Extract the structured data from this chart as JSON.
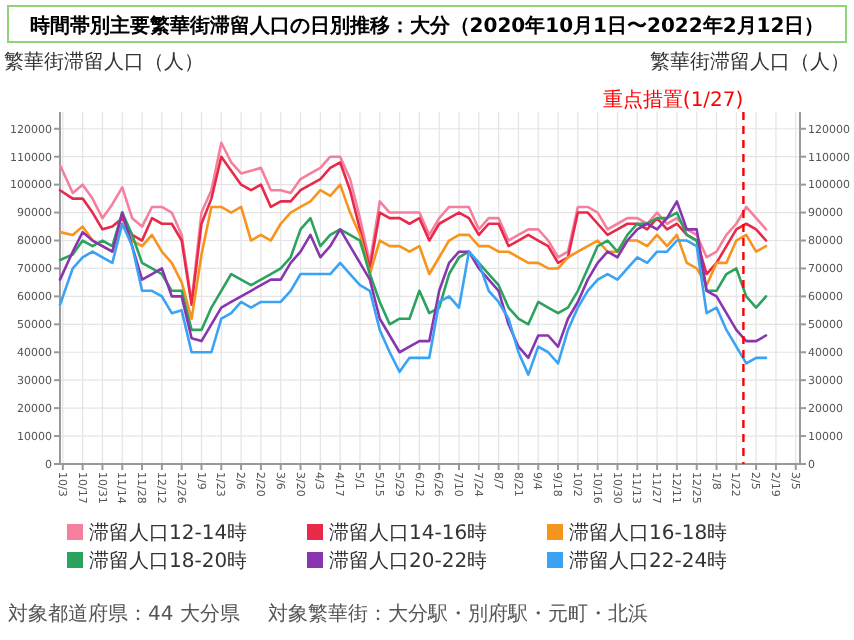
{
  "chart_data": {
    "type": "line",
    "title": "時間帯別主要繁華街滞留人口の日別推移：大分（2020年10月1日〜2022年2月12日）",
    "ylabel": "繁華街滞留人口（人）",
    "y2label": "繁華街滞留人口（人）",
    "x": [
      "2020-10-01",
      "2020-10-10",
      "2020-10-17",
      "2020-10-24",
      "2020-10-31",
      "2020-11-07",
      "2020-11-14",
      "2020-11-21",
      "2020-11-28",
      "2020-12-05",
      "2020-12-12",
      "2020-12-19",
      "2020-12-26",
      "2021-01-02",
      "2021-01-09",
      "2021-01-16",
      "2021-01-23",
      "2021-01-30",
      "2021-02-06",
      "2021-02-13",
      "2021-02-20",
      "2021-02-27",
      "2021-03-06",
      "2021-03-13",
      "2021-03-20",
      "2021-03-27",
      "2021-04-03",
      "2021-04-10",
      "2021-04-17",
      "2021-04-24",
      "2021-05-01",
      "2021-05-08",
      "2021-05-15",
      "2021-05-22",
      "2021-05-29",
      "2021-06-05",
      "2021-06-12",
      "2021-06-19",
      "2021-06-26",
      "2021-07-03",
      "2021-07-10",
      "2021-07-17",
      "2021-07-24",
      "2021-07-31",
      "2021-08-07",
      "2021-08-14",
      "2021-08-21",
      "2021-08-28",
      "2021-09-04",
      "2021-09-11",
      "2021-09-18",
      "2021-09-25",
      "2021-10-02",
      "2021-10-09",
      "2021-10-16",
      "2021-10-23",
      "2021-10-30",
      "2021-11-06",
      "2021-11-13",
      "2021-11-20",
      "2021-11-27",
      "2021-12-04",
      "2021-12-11",
      "2021-12-18",
      "2021-12-25",
      "2022-01-01",
      "2022-01-08",
      "2022-01-15",
      "2022-01-22",
      "2022-01-29",
      "2022-02-05",
      "2022-02-12"
    ],
    "series": [
      {
        "name": "滞留人口12-14時",
        "color": "#f5809e",
        "values": [
          107000,
          97000,
          100000,
          95000,
          88000,
          93000,
          99000,
          88000,
          85000,
          92000,
          92000,
          90000,
          82000,
          58000,
          90000,
          98000,
          115000,
          108000,
          104000,
          105000,
          106000,
          98000,
          98000,
          97000,
          102000,
          104000,
          106000,
          110000,
          110000,
          102000,
          88000,
          72000,
          94000,
          90000,
          90000,
          90000,
          90000,
          82000,
          88000,
          92000,
          92000,
          92000,
          84000,
          88000,
          88000,
          80000,
          82000,
          84000,
          84000,
          80000,
          74000,
          76000,
          92000,
          92000,
          90000,
          84000,
          86000,
          88000,
          88000,
          86000,
          90000,
          86000,
          88000,
          84000,
          82000,
          74000,
          76000,
          82000,
          86000,
          92000,
          88000,
          84000
        ]
      },
      {
        "name": "滞留人口14-16時",
        "color": "#e8294a",
        "values": [
          98000,
          95000,
          95000,
          90000,
          84000,
          85000,
          88000,
          82000,
          80000,
          88000,
          86000,
          86000,
          80000,
          57000,
          86000,
          95000,
          110000,
          105000,
          100000,
          98000,
          100000,
          92000,
          94000,
          94000,
          98000,
          100000,
          102000,
          106000,
          108000,
          98000,
          84000,
          70000,
          90000,
          88000,
          88000,
          86000,
          88000,
          80000,
          86000,
          88000,
          90000,
          88000,
          82000,
          86000,
          86000,
          78000,
          80000,
          82000,
          80000,
          78000,
          72000,
          74000,
          90000,
          90000,
          86000,
          82000,
          84000,
          86000,
          86000,
          84000,
          88000,
          84000,
          86000,
          82000,
          80000,
          68000,
          72000,
          78000,
          84000,
          86000,
          84000,
          80000
        ]
      },
      {
        "name": "滞留人口16-18時",
        "color": "#f7941d",
        "values": [
          83000,
          82000,
          85000,
          80000,
          78000,
          76000,
          86000,
          80000,
          78000,
          82000,
          76000,
          72000,
          65000,
          52000,
          75000,
          92000,
          92000,
          90000,
          92000,
          80000,
          82000,
          80000,
          86000,
          90000,
          92000,
          94000,
          98000,
          96000,
          100000,
          90000,
          82000,
          68000,
          80000,
          78000,
          78000,
          76000,
          78000,
          68000,
          74000,
          80000,
          82000,
          82000,
          78000,
          78000,
          76000,
          76000,
          74000,
          72000,
          72000,
          70000,
          70000,
          74000,
          76000,
          78000,
          80000,
          76000,
          76000,
          80000,
          80000,
          78000,
          82000,
          78000,
          82000,
          72000,
          70000,
          64000,
          72000,
          72000,
          80000,
          82000,
          76000,
          78000
        ]
      },
      {
        "name": "滞留人口18-20時",
        "color": "#2ca25f",
        "values": [
          73000,
          75000,
          80000,
          78000,
          80000,
          78000,
          90000,
          82000,
          72000,
          70000,
          68000,
          62000,
          62000,
          48000,
          48000,
          56000,
          62000,
          68000,
          66000,
          64000,
          66000,
          68000,
          70000,
          74000,
          84000,
          88000,
          78000,
          82000,
          84000,
          82000,
          80000,
          68000,
          58000,
          50000,
          52000,
          52000,
          62000,
          54000,
          56000,
          68000,
          74000,
          76000,
          72000,
          68000,
          64000,
          56000,
          52000,
          50000,
          58000,
          56000,
          54000,
          56000,
          62000,
          70000,
          78000,
          80000,
          76000,
          82000,
          86000,
          86000,
          88000,
          88000,
          90000,
          82000,
          80000,
          62000,
          62000,
          68000,
          70000,
          60000,
          56000,
          60000
        ]
      },
      {
        "name": "滞留人口20-22時",
        "color": "#8a35b0",
        "values": [
          66000,
          76000,
          83000,
          80000,
          78000,
          76000,
          90000,
          78000,
          66000,
          68000,
          70000,
          60000,
          60000,
          45000,
          44000,
          50000,
          56000,
          58000,
          60000,
          62000,
          64000,
          66000,
          66000,
          72000,
          76000,
          82000,
          74000,
          78000,
          84000,
          78000,
          72000,
          66000,
          52000,
          46000,
          40000,
          42000,
          44000,
          44000,
          62000,
          72000,
          76000,
          76000,
          70000,
          66000,
          62000,
          50000,
          42000,
          38000,
          46000,
          46000,
          42000,
          52000,
          58000,
          66000,
          72000,
          76000,
          74000,
          80000,
          84000,
          86000,
          84000,
          88000,
          94000,
          84000,
          84000,
          62000,
          60000,
          54000,
          48000,
          44000,
          44000,
          46000
        ]
      },
      {
        "name": "滞留人口22-24時",
        "color": "#3aa3f5",
        "values": [
          57000,
          70000,
          74000,
          76000,
          74000,
          72000,
          86000,
          78000,
          62000,
          62000,
          60000,
          54000,
          55000,
          40000,
          40000,
          40000,
          52000,
          54000,
          58000,
          56000,
          58000,
          58000,
          58000,
          62000,
          68000,
          68000,
          68000,
          68000,
          72000,
          68000,
          64000,
          62000,
          48000,
          40000,
          33000,
          38000,
          38000,
          38000,
          58000,
          60000,
          56000,
          76000,
          72000,
          62000,
          58000,
          52000,
          40000,
          32000,
          42000,
          40000,
          36000,
          48000,
          56000,
          62000,
          66000,
          68000,
          66000,
          70000,
          74000,
          72000,
          76000,
          76000,
          80000,
          80000,
          78000,
          54000,
          56000,
          48000,
          42000,
          36000,
          38000,
          38000
        ]
      }
    ],
    "xlim": [
      "2020-10-01",
      "2022-03-08"
    ],
    "xticks": [
      {
        "value": "2020-10-03",
        "label": "10/3"
      },
      {
        "value": "2020-10-17",
        "label": "10/17"
      },
      {
        "value": "2020-10-31",
        "label": "10/31"
      },
      {
        "value": "2020-11-14",
        "label": "11/14"
      },
      {
        "value": "2020-11-28",
        "label": "11/28"
      },
      {
        "value": "2020-12-12",
        "label": "12/12"
      },
      {
        "value": "2020-12-26",
        "label": "12/26"
      },
      {
        "value": "2021-01-09",
        "label": "1/9"
      },
      {
        "value": "2021-01-23",
        "label": "1/23"
      },
      {
        "value": "2021-02-06",
        "label": "2/6"
      },
      {
        "value": "2021-02-20",
        "label": "2/20"
      },
      {
        "value": "2021-03-06",
        "label": "3/6"
      },
      {
        "value": "2021-03-20",
        "label": "3/20"
      },
      {
        "value": "2021-04-03",
        "label": "4/3"
      },
      {
        "value": "2021-04-17",
        "label": "4/17"
      },
      {
        "value": "2021-05-01",
        "label": "5/1"
      },
      {
        "value": "2021-05-15",
        "label": "5/15"
      },
      {
        "value": "2021-05-29",
        "label": "5/29"
      },
      {
        "value": "2021-06-12",
        "label": "6/12"
      },
      {
        "value": "2021-06-26",
        "label": "6/26"
      },
      {
        "value": "2021-07-10",
        "label": "7/10"
      },
      {
        "value": "2021-07-24",
        "label": "7/24"
      },
      {
        "value": "2021-08-07",
        "label": "8/7"
      },
      {
        "value": "2021-08-21",
        "label": "8/21"
      },
      {
        "value": "2021-09-04",
        "label": "9/4"
      },
      {
        "value": "2021-09-18",
        "label": "9/18"
      },
      {
        "value": "2021-10-02",
        "label": "10/2"
      },
      {
        "value": "2021-10-16",
        "label": "10/16"
      },
      {
        "value": "2021-10-30",
        "label": "10/30"
      },
      {
        "value": "2021-11-13",
        "label": "11/13"
      },
      {
        "value": "2021-11-27",
        "label": "11/27"
      },
      {
        "value": "2021-12-11",
        "label": "12/11"
      },
      {
        "value": "2021-12-25",
        "label": "12/25"
      },
      {
        "value": "2022-01-08",
        "label": "1/8"
      },
      {
        "value": "2022-01-22",
        "label": "1/22"
      },
      {
        "value": "2022-02-05",
        "label": "2/5"
      },
      {
        "value": "2022-02-19",
        "label": "2/19"
      },
      {
        "value": "2022-03-05",
        "label": "3/5"
      }
    ],
    "ylim": [
      0,
      126000
    ],
    "yticks": [
      0,
      10000,
      20000,
      30000,
      40000,
      50000,
      60000,
      70000,
      80000,
      90000,
      100000,
      110000,
      120000
    ],
    "y2lim": [
      0,
      126000
    ],
    "y2ticks": [
      0,
      10000,
      20000,
      30000,
      40000,
      50000,
      60000,
      70000,
      80000,
      90000,
      100000,
      110000,
      120000
    ],
    "ref_lines": [
      {
        "axis": "x",
        "value": "2022-01-27",
        "label": "重点措置(1/27)",
        "color": "#ff0000",
        "line_style": "dashed"
      }
    ],
    "grid": true,
    "legend": "bottom",
    "annotations": [
      "対象都道府県：44 大分県",
      "対象繁華街：大分駅・別府駅・元町・北浜"
    ]
  }
}
